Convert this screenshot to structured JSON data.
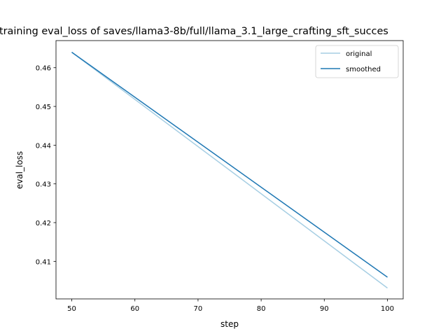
{
  "chart_data": {
    "type": "line",
    "title": "training eval_loss of saves/llama3-8b/full/llama_3.1_large_crafting_sft_succes",
    "xlabel": "step",
    "ylabel": "eval_loss",
    "xlim": [
      47.5,
      102.5
    ],
    "ylim": [
      0.4003,
      0.467
    ],
    "xticks": [
      50,
      60,
      70,
      80,
      90,
      100
    ],
    "yticks": [
      0.41,
      0.42,
      0.43,
      0.44,
      0.45,
      0.46
    ],
    "ytick_labels": [
      "0.41",
      "0.42",
      "0.43",
      "0.44",
      "0.45",
      "0.46"
    ],
    "grid": false,
    "legend_position": "top-right",
    "series": [
      {
        "name": "original",
        "color": "#a6cee3",
        "x": [
          50,
          100
        ],
        "y": [
          0.464,
          0.4031
        ]
      },
      {
        "name": "smoothed",
        "color": "#1f78b4",
        "x": [
          50,
          100
        ],
        "y": [
          0.464,
          0.4059
        ]
      }
    ]
  }
}
